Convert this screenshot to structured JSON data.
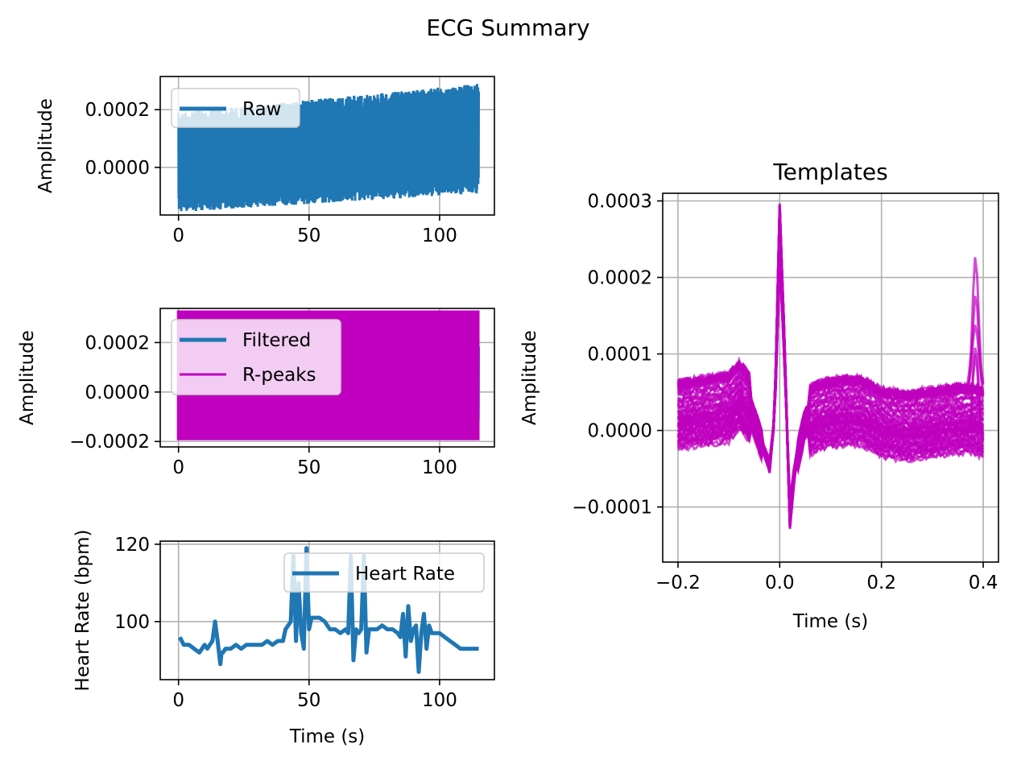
{
  "figure": {
    "suptitle": "ECG Summary",
    "colors": {
      "raw": "#1f77b4",
      "peaks": "#bf00bf",
      "grid": "#b0b0b0"
    }
  },
  "chart_data": [
    {
      "id": "raw",
      "type": "line",
      "title": "",
      "xlabel": "",
      "ylabel": "Amplitude",
      "xlim": [
        -7,
        121
      ],
      "ylim": [
        -0.000165,
        0.000315
      ],
      "xticks": [
        0,
        50,
        100
      ],
      "xtick_labels": [
        "0",
        "50",
        "100"
      ],
      "yticks": [
        0.0,
        0.0002
      ],
      "ytick_labels": [
        "0.0000",
        "0.0002"
      ],
      "grid": true,
      "legend": {
        "position": "upper-left",
        "entries": [
          "Raw"
        ]
      },
      "series": [
        {
          "name": "Raw",
          "color": "#1f77b4",
          "x_range": [
            0,
            115
          ],
          "envelope_min_start": -0.000155,
          "envelope_min_end": -9e-05,
          "envelope_max_start": 0.00019,
          "envelope_max_end": 0.00029
        }
      ]
    },
    {
      "id": "filtered",
      "type": "line",
      "title": "",
      "xlabel": "",
      "ylabel": "Amplitude",
      "xlim": [
        -7,
        121
      ],
      "ylim": [
        -0.000222,
        0.000338
      ],
      "xticks": [
        0,
        50,
        100
      ],
      "xtick_labels": [
        "0",
        "50",
        "100"
      ],
      "yticks": [
        -0.0002,
        0.0,
        0.0002
      ],
      "ytick_labels": [
        "−0.0002",
        "0.0000",
        "0.0002"
      ],
      "grid": true,
      "legend": {
        "position": "upper-left",
        "entries": [
          "Filtered",
          "R-peaks"
        ]
      },
      "series": [
        {
          "name": "Filtered",
          "color": "#1f77b4",
          "x_range": [
            0,
            115
          ],
          "envelope_min": -0.00015,
          "envelope_max": 0.00029
        },
        {
          "name": "R-peaks",
          "color": "#bf00bf",
          "x_range": [
            0,
            115
          ],
          "ymin": -0.000195,
          "ymax": 0.00033
        }
      ]
    },
    {
      "id": "heart_rate",
      "type": "line",
      "title": "",
      "xlabel": "Time (s)",
      "ylabel": "Heart Rate (bpm)",
      "xlim": [
        -7,
        121
      ],
      "ylim": [
        85,
        120.8
      ],
      "xticks": [
        0,
        50,
        100
      ],
      "xtick_labels": [
        "0",
        "50",
        "100"
      ],
      "yticks": [
        100,
        120
      ],
      "ytick_labels": [
        "100",
        "120"
      ],
      "grid": true,
      "legend": {
        "position": "upper-right",
        "entries": [
          "Heart Rate"
        ]
      },
      "series": [
        {
          "name": "Heart Rate",
          "color": "#1f77b4",
          "x": [
            0.5,
            2,
            4,
            6,
            8,
            10,
            11,
            12,
            13,
            14,
            15,
            16,
            16.5,
            17,
            18,
            20,
            22,
            24,
            26,
            28,
            30,
            32,
            34,
            36,
            38,
            40,
            41,
            42,
            43,
            44,
            45,
            46,
            47,
            48,
            49,
            50,
            51,
            52,
            54,
            56,
            58,
            60,
            62,
            64,
            65,
            66,
            67,
            68,
            69,
            70,
            71,
            72,
            73,
            74,
            76,
            78,
            80,
            82,
            84,
            85,
            86,
            87,
            88,
            89,
            90,
            91,
            92,
            93,
            94,
            95,
            96,
            97,
            98,
            100,
            102,
            104,
            106,
            108,
            110,
            112,
            113,
            115
          ],
          "y": [
            96,
            94,
            94,
            93,
            92,
            94,
            93,
            94,
            95,
            100,
            95,
            89,
            92,
            92,
            93,
            93,
            94,
            93,
            94,
            94,
            94,
            94,
            95,
            94,
            95,
            95,
            98,
            99,
            100,
            117,
            95,
            110,
            97,
            93,
            119,
            98,
            101,
            101,
            101,
            100,
            98,
            98,
            97,
            98,
            97,
            117,
            90,
            98,
            97,
            98,
            117,
            92,
            98,
            98,
            98,
            99,
            98,
            98,
            97,
            96,
            102,
            91,
            104,
            95,
            98,
            99,
            87,
            97,
            102,
            93,
            99,
            97,
            97,
            97,
            96,
            95,
            94,
            93,
            93,
            93,
            93,
            93
          ]
        }
      ]
    },
    {
      "id": "templates",
      "type": "line",
      "title": "Templates",
      "xlabel": "Time (s)",
      "ylabel": "Amplitude",
      "xlim": [
        -0.23,
        0.43
      ],
      "ylim": [
        -0.000172,
        0.00031
      ],
      "xticks": [
        -0.2,
        0.0,
        0.2,
        0.4
      ],
      "xtick_labels": [
        "−0.2",
        "0.0",
        "0.2",
        "0.4"
      ],
      "yticks": [
        -0.0001,
        0.0,
        0.0001,
        0.0002,
        0.0003
      ],
      "ytick_labels": [
        "−0.0001",
        "0.0000",
        "0.0001",
        "0.0002",
        "0.0003"
      ],
      "grid": true,
      "series": [
        {
          "name": "",
          "color": "#bf00bf",
          "x": [
            -0.2,
            -0.15,
            -0.1,
            -0.08,
            -0.06,
            -0.04,
            -0.02,
            -0.01,
            0.0,
            0.01,
            0.02,
            0.03,
            0.05,
            0.08,
            0.12,
            0.16,
            0.2,
            0.25,
            0.3,
            0.35,
            0.38,
            0.4
          ],
          "y": [
            2e-05,
            2.5e-05,
            3e-05,
            4.5e-05,
            3e-05,
            -1e-05,
            -5e-05,
            2e-05,
            0.00028,
            0.0001,
            -0.00012,
            -5e-05,
            1e-05,
            2e-05,
            2.5e-05,
            2.5e-05,
            1e-05,
            5e-06,
            1e-05,
            1.5e-05,
            1.5e-05,
            1e-05
          ],
          "spread_at_x": [
            -0.2,
            0.1,
            0.4
          ],
          "spread": [
            8e-05,
            9e-05,
            8e-05
          ]
        }
      ]
    }
  ]
}
